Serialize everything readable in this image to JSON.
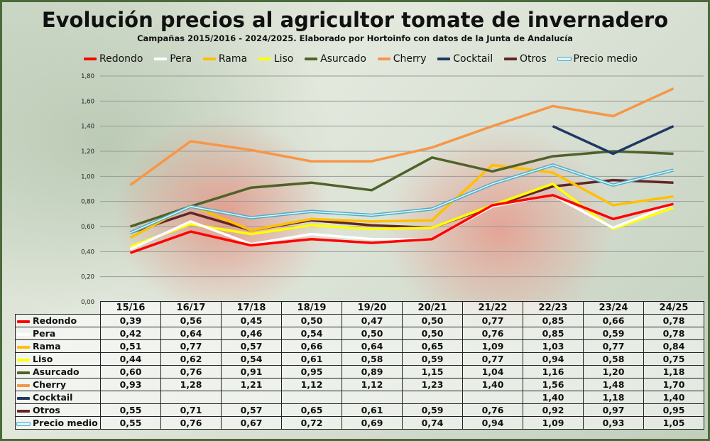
{
  "title": "Evolución precios al agricultor tomate de invernadero",
  "subtitle": "Campañas 2015/2016 - 2024/2025. Elaborado por Hortoinfo con datos de la Junta de Andalucía",
  "chart_data": {
    "type": "line",
    "title": "Evolución precios al agricultor tomate de invernadero",
    "subtitle": "Campañas 2015/2016 - 2024/2025. Elaborado por Hortoinfo con datos de la Junta de Andalucía",
    "categories": [
      "15/16",
      "16/17",
      "17/18",
      "18/19",
      "19/20",
      "20/21",
      "21/22",
      "22/23",
      "23/24",
      "24/25"
    ],
    "ylim": [
      0,
      1.8
    ],
    "yticks": [
      "0,00",
      "0,20",
      "0,40",
      "0,60",
      "0,80",
      "1,00",
      "1,20",
      "1,40",
      "1,60",
      "1,80"
    ],
    "grid": true,
    "legend_position": "top",
    "series": [
      {
        "name": "Redondo",
        "color": "#ff0000",
        "values": [
          0.39,
          0.56,
          0.45,
          0.5,
          0.47,
          0.5,
          0.77,
          0.85,
          0.66,
          0.78
        ],
        "labels": [
          "0,39",
          "0,56",
          "0,45",
          "0,50",
          "0,47",
          "0,50",
          "0,77",
          "0,85",
          "0,66",
          "0,78"
        ]
      },
      {
        "name": "Pera",
        "color": "#ffffff",
        "values": [
          0.42,
          0.64,
          0.46,
          0.54,
          0.5,
          0.5,
          0.76,
          0.85,
          0.59,
          0.78
        ],
        "labels": [
          "0,42",
          "0,64",
          "0,46",
          "0,54",
          "0,50",
          "0,50",
          "0,76",
          "0,85",
          "0,59",
          "0,78"
        ]
      },
      {
        "name": "Rama",
        "color": "#ffc000",
        "values": [
          0.51,
          0.77,
          0.57,
          0.66,
          0.64,
          0.65,
          1.09,
          1.03,
          0.77,
          0.84
        ],
        "labels": [
          "0,51",
          "0,77",
          "0,57",
          "0,66",
          "0,64",
          "0,65",
          "1,09",
          "1,03",
          "0,77",
          "0,84"
        ]
      },
      {
        "name": "Liso",
        "color": "#ffff00",
        "values": [
          0.44,
          0.62,
          0.54,
          0.61,
          0.58,
          0.59,
          0.77,
          0.94,
          0.58,
          0.75
        ],
        "labels": [
          "0,44",
          "0,62",
          "0,54",
          "0,61",
          "0,58",
          "0,59",
          "0,77",
          "0,94",
          "0,58",
          "0,75"
        ]
      },
      {
        "name": "Asurcado",
        "color": "#4f6228",
        "values": [
          0.6,
          0.76,
          0.91,
          0.95,
          0.89,
          1.15,
          1.04,
          1.16,
          1.2,
          1.18
        ],
        "labels": [
          "0,60",
          "0,76",
          "0,91",
          "0,95",
          "0,89",
          "1,15",
          "1,04",
          "1,16",
          "1,20",
          "1,18"
        ]
      },
      {
        "name": "Cherry",
        "color": "#f79646",
        "values": [
          0.93,
          1.28,
          1.21,
          1.12,
          1.12,
          1.23,
          1.4,
          1.56,
          1.48,
          1.7
        ],
        "labels": [
          "0,93",
          "1,28",
          "1,21",
          "1,12",
          "1,12",
          "1,23",
          "1,40",
          "1,56",
          "1,48",
          "1,70"
        ]
      },
      {
        "name": "Cocktail",
        "color": "#1f3864",
        "values": [
          null,
          null,
          null,
          null,
          null,
          null,
          null,
          1.4,
          1.18,
          1.4
        ],
        "labels": [
          "",
          "",
          "",
          "",
          "",
          "",
          "",
          "1,40",
          "1,18",
          "1,40"
        ]
      },
      {
        "name": "Otros",
        "color": "#632523",
        "values": [
          0.55,
          0.71,
          0.57,
          0.65,
          0.61,
          0.59,
          0.76,
          0.92,
          0.97,
          0.95
        ],
        "labels": [
          "0,55",
          "0,71",
          "0,57",
          "0,65",
          "0,61",
          "0,59",
          "0,76",
          "0,92",
          "0,97",
          "0,95"
        ]
      },
      {
        "name": "Precio medio",
        "color": "#4bacc6",
        "outline": true,
        "values": [
          0.55,
          0.76,
          0.67,
          0.72,
          0.69,
          0.74,
          0.94,
          1.09,
          0.93,
          1.05
        ],
        "labels": [
          "0,55",
          "0,76",
          "0,67",
          "0,72",
          "0,69",
          "0,74",
          "0,94",
          "1,09",
          "0,93",
          "1,05"
        ]
      }
    ]
  }
}
